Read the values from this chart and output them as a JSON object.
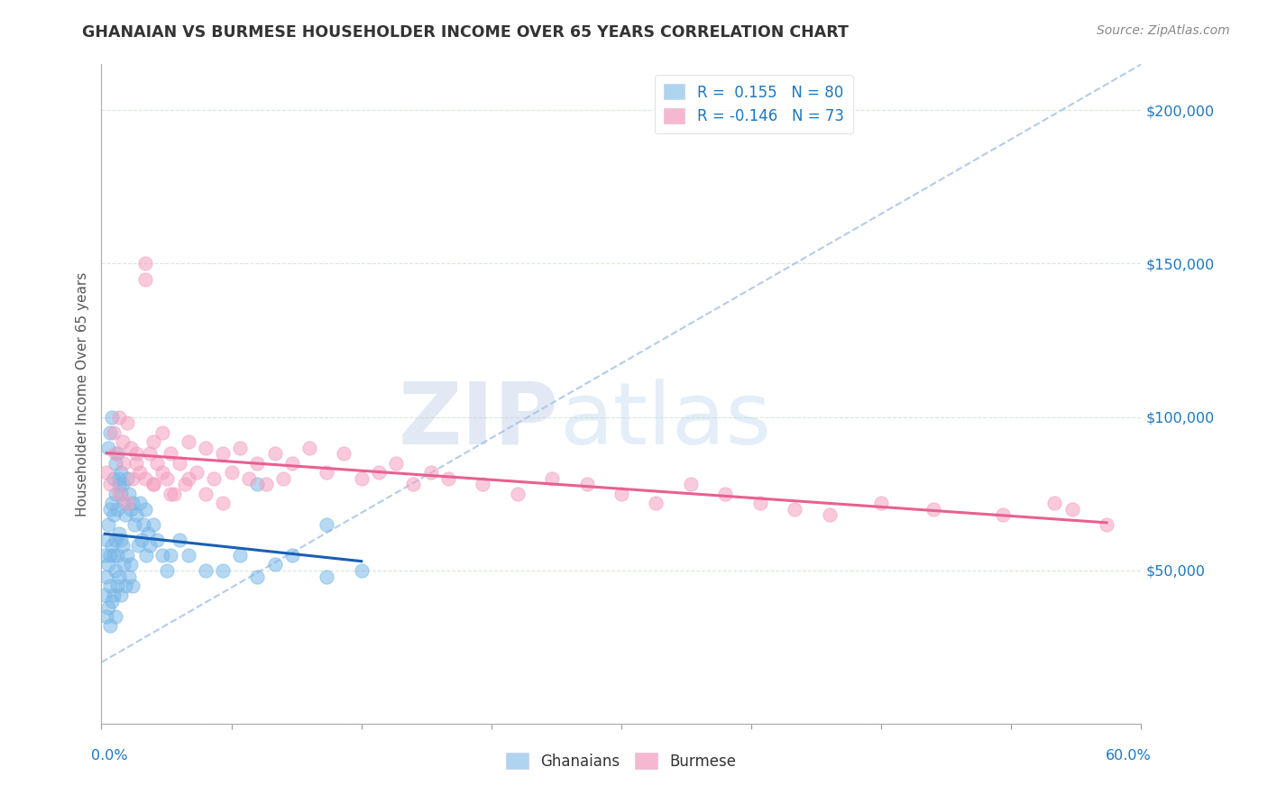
{
  "title": "GHANAIAN VS BURMESE HOUSEHOLDER INCOME OVER 65 YEARS CORRELATION CHART",
  "source_text": "Source: ZipAtlas.com",
  "ylabel": "Householder Income Over 65 years",
  "xlim": [
    0.0,
    0.6
  ],
  "ylim": [
    0,
    215000
  ],
  "yticks": [
    0,
    50000,
    100000,
    150000,
    200000
  ],
  "ghanaian_color": "#7ab8e8",
  "burmese_color": "#f5a0be",
  "trend_ghanaian_color": "#1a5fb4",
  "trend_burmese_color": "#e86090",
  "dashed_line_color": "#a0c0e8",
  "watermark": "ZIPatlas",
  "watermark_color": "#c8d8f0",
  "R_ghanaian": 0.155,
  "R_burmese": -0.146,
  "N_ghanaian": 80,
  "N_burmese": 73,
  "legend_label1": "R =  0.155   N = 80",
  "legend_label2": "R = -0.146   N = 73",
  "legend_color1": "#aed4f0",
  "legend_color2": "#f5b8d0",
  "ghanaian_x": [
    0.002,
    0.002,
    0.003,
    0.003,
    0.003,
    0.004,
    0.004,
    0.004,
    0.005,
    0.005,
    0.005,
    0.005,
    0.006,
    0.006,
    0.006,
    0.007,
    0.007,
    0.007,
    0.008,
    0.008,
    0.008,
    0.008,
    0.009,
    0.009,
    0.009,
    0.01,
    0.01,
    0.01,
    0.011,
    0.011,
    0.011,
    0.012,
    0.012,
    0.013,
    0.013,
    0.014,
    0.014,
    0.015,
    0.015,
    0.016,
    0.016,
    0.017,
    0.017,
    0.018,
    0.018,
    0.019,
    0.02,
    0.021,
    0.022,
    0.023,
    0.024,
    0.025,
    0.026,
    0.027,
    0.028,
    0.03,
    0.032,
    0.035,
    0.038,
    0.04,
    0.045,
    0.05,
    0.06,
    0.07,
    0.08,
    0.09,
    0.1,
    0.11,
    0.13,
    0.15,
    0.004,
    0.005,
    0.006,
    0.007,
    0.008,
    0.009,
    0.01,
    0.011,
    0.13,
    0.09
  ],
  "ghanaian_y": [
    55000,
    42000,
    60000,
    48000,
    35000,
    65000,
    52000,
    38000,
    70000,
    55000,
    45000,
    32000,
    72000,
    58000,
    40000,
    68000,
    55000,
    42000,
    75000,
    60000,
    50000,
    35000,
    70000,
    55000,
    45000,
    80000,
    62000,
    48000,
    75000,
    60000,
    42000,
    78000,
    58000,
    72000,
    52000,
    68000,
    45000,
    80000,
    55000,
    75000,
    48000,
    70000,
    52000,
    72000,
    45000,
    65000,
    68000,
    58000,
    72000,
    60000,
    65000,
    70000,
    55000,
    62000,
    58000,
    65000,
    60000,
    55000,
    50000,
    55000,
    60000,
    55000,
    50000,
    50000,
    55000,
    48000,
    52000,
    55000,
    48000,
    50000,
    90000,
    95000,
    100000,
    80000,
    85000,
    88000,
    78000,
    82000,
    65000,
    78000
  ],
  "burmese_x": [
    0.003,
    0.005,
    0.007,
    0.008,
    0.01,
    0.01,
    0.012,
    0.013,
    0.015,
    0.015,
    0.017,
    0.018,
    0.02,
    0.022,
    0.025,
    0.025,
    0.028,
    0.03,
    0.03,
    0.032,
    0.035,
    0.038,
    0.04,
    0.042,
    0.045,
    0.048,
    0.05,
    0.055,
    0.06,
    0.065,
    0.07,
    0.075,
    0.08,
    0.085,
    0.09,
    0.095,
    0.1,
    0.105,
    0.11,
    0.12,
    0.13,
    0.14,
    0.15,
    0.16,
    0.17,
    0.18,
    0.19,
    0.2,
    0.22,
    0.24,
    0.26,
    0.28,
    0.3,
    0.32,
    0.34,
    0.36,
    0.38,
    0.4,
    0.42,
    0.45,
    0.48,
    0.52,
    0.55,
    0.56,
    0.58,
    0.02,
    0.025,
    0.03,
    0.035,
    0.04,
    0.05,
    0.06,
    0.07
  ],
  "burmese_y": [
    82000,
    78000,
    95000,
    88000,
    100000,
    75000,
    92000,
    85000,
    98000,
    72000,
    90000,
    80000,
    88000,
    82000,
    150000,
    145000,
    88000,
    78000,
    92000,
    85000,
    95000,
    80000,
    88000,
    75000,
    85000,
    78000,
    92000,
    82000,
    90000,
    80000,
    88000,
    82000,
    90000,
    80000,
    85000,
    78000,
    88000,
    80000,
    85000,
    90000,
    82000,
    88000,
    80000,
    82000,
    85000,
    78000,
    82000,
    80000,
    78000,
    75000,
    80000,
    78000,
    75000,
    72000,
    78000,
    75000,
    72000,
    70000,
    68000,
    72000,
    70000,
    68000,
    72000,
    70000,
    65000,
    85000,
    80000,
    78000,
    82000,
    75000,
    80000,
    75000,
    72000
  ]
}
